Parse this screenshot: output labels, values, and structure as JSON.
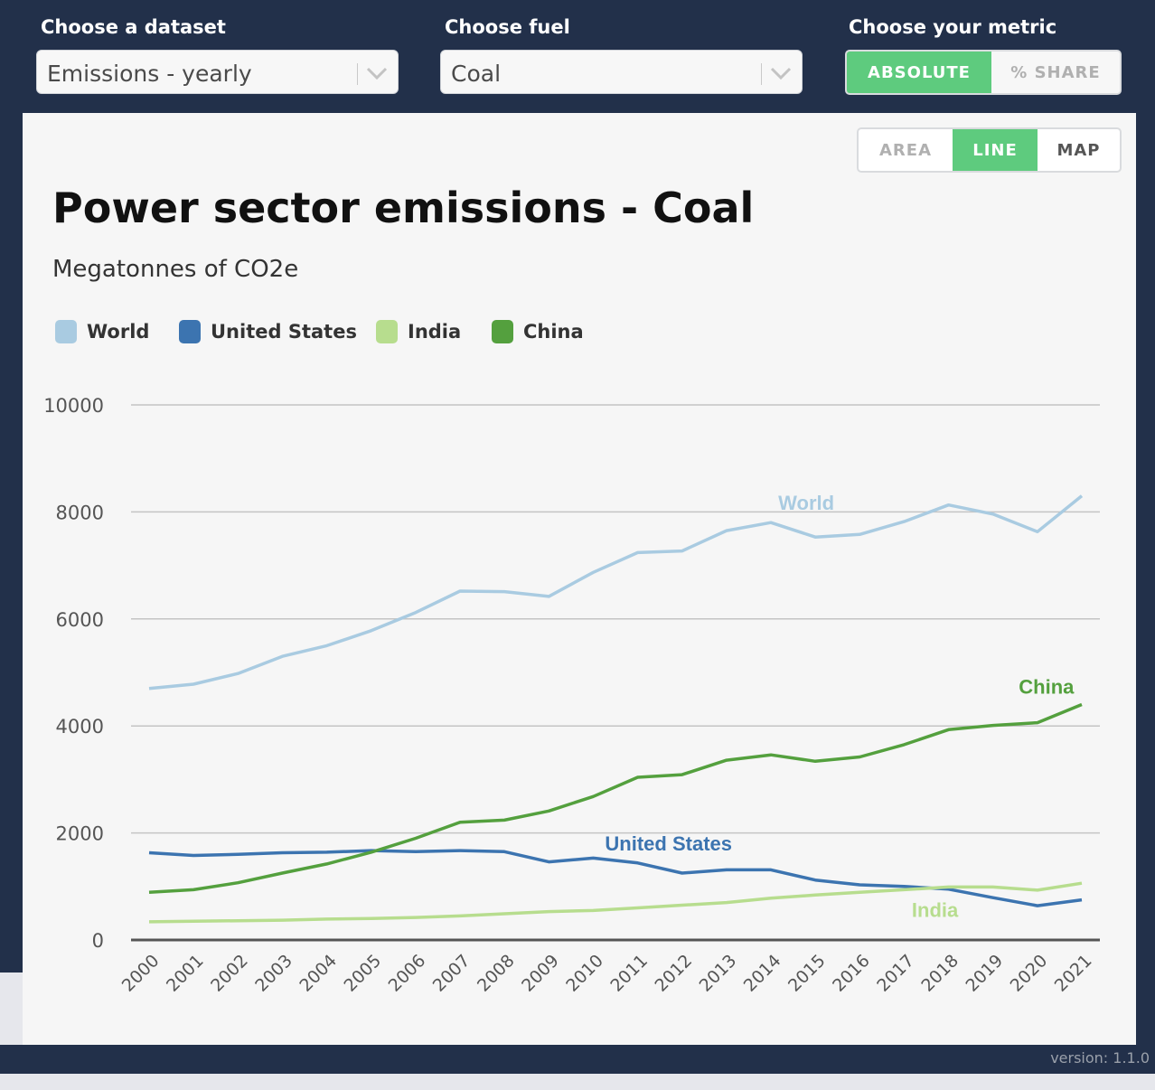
{
  "controls": {
    "dataset": {
      "label": "Choose a dataset",
      "value": "Emissions - yearly"
    },
    "fuel": {
      "label": "Choose fuel",
      "value": "Coal"
    },
    "metric": {
      "label": "Choose your metric",
      "options": [
        "ABSOLUTE",
        "% SHARE"
      ],
      "selected": "ABSOLUTE"
    }
  },
  "view_toggle": {
    "options": [
      "AREA",
      "LINE",
      "MAP"
    ],
    "selected": "LINE"
  },
  "footer": {
    "version": "version: 1.1.0"
  },
  "colors": {
    "accent": "#5ecb7e",
    "frame": "#22304a"
  },
  "chart_data": {
    "type": "line",
    "title": "Power sector emissions - Coal",
    "subtitle": "Megatonnes of CO2e",
    "x": [
      2000,
      2001,
      2002,
      2003,
      2004,
      2005,
      2006,
      2007,
      2008,
      2009,
      2010,
      2011,
      2012,
      2013,
      2014,
      2015,
      2016,
      2017,
      2018,
      2019,
      2020,
      2021
    ],
    "ylim": [
      0,
      10000
    ],
    "yticks": [
      0,
      2000,
      4000,
      6000,
      8000,
      10000
    ],
    "grid": true,
    "legend_position": "top-left",
    "series": [
      {
        "name": "World",
        "color": "#a9cbe1",
        "label_color": "#a9cbe1",
        "values": [
          4700,
          4780,
          4980,
          5300,
          5500,
          5780,
          6120,
          6520,
          6510,
          6420,
          6870,
          7240,
          7270,
          7650,
          7800,
          7530,
          7580,
          7820,
          8130,
          7960,
          7630,
          8300
        ]
      },
      {
        "name": "United States",
        "color": "#3c74b0",
        "label_color": "#3c74b0",
        "values": [
          1630,
          1580,
          1600,
          1630,
          1640,
          1670,
          1650,
          1670,
          1650,
          1460,
          1530,
          1440,
          1250,
          1310,
          1310,
          1120,
          1030,
          1000,
          950,
          790,
          640,
          750
        ]
      },
      {
        "name": "India",
        "color": "#b7dd8e",
        "label_color": "#b7dd8e",
        "values": [
          340,
          350,
          360,
          370,
          390,
          400,
          420,
          450,
          490,
          530,
          550,
          600,
          650,
          700,
          780,
          840,
          890,
          940,
          990,
          990,
          930,
          1060
        ]
      },
      {
        "name": "China",
        "color": "#54a03e",
        "label_color": "#54a03e",
        "values": [
          890,
          940,
          1070,
          1250,
          1420,
          1640,
          1900,
          2200,
          2240,
          2410,
          2680,
          3040,
          3090,
          3360,
          3460,
          3340,
          3420,
          3650,
          3930,
          4010,
          4060,
          4400
        ]
      }
    ]
  }
}
